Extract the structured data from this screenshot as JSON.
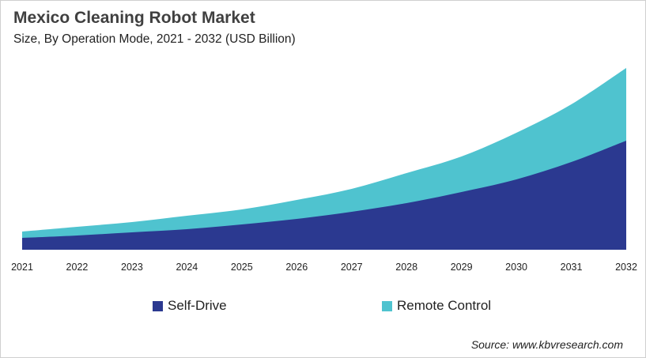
{
  "chart_data": {
    "type": "area",
    "stacked": true,
    "title": "Mexico Cleaning Robot Market",
    "subtitle": "Size, By Operation Mode, 2021 - 2032 (USD Billion)",
    "categories": [
      "2021",
      "2022",
      "2023",
      "2024",
      "2025",
      "2026",
      "2027",
      "2028",
      "2029",
      "2030",
      "2031",
      "2032"
    ],
    "series": [
      {
        "name": "Self-Drive",
        "color": "#2b3990",
        "values": [
          0.15,
          0.18,
          0.22,
          0.26,
          0.32,
          0.39,
          0.48,
          0.59,
          0.73,
          0.89,
          1.11,
          1.38
        ]
      },
      {
        "name": "Remote Control",
        "color": "#4fc3cf",
        "values": [
          0.08,
          0.11,
          0.13,
          0.17,
          0.19,
          0.24,
          0.29,
          0.38,
          0.45,
          0.59,
          0.73,
          0.92
        ]
      }
    ],
    "y_axis_visible": false,
    "grid": false,
    "legend_position": "bottom",
    "source": "Source: www.kbvresearch.com"
  }
}
